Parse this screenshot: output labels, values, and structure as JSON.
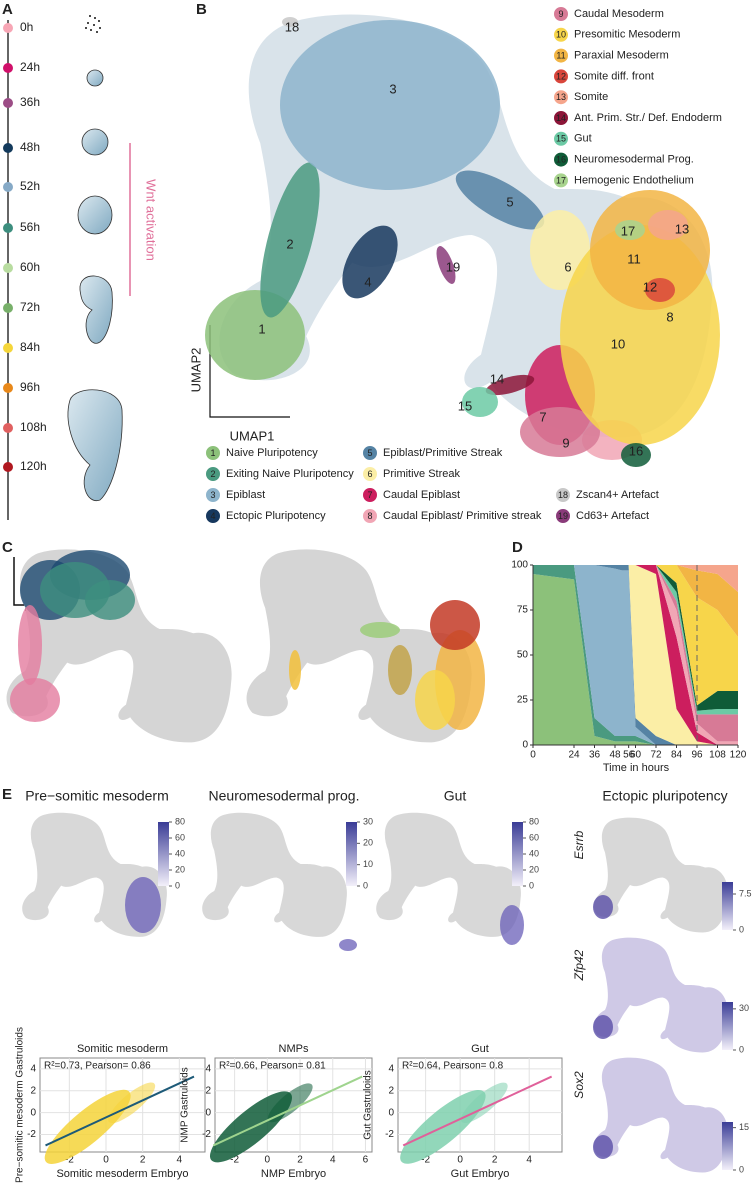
{
  "panelA": {
    "label": "A",
    "annotation": "Wnt activation",
    "timepoints": [
      {
        "label": "0h",
        "color": "#f7a6b5"
      },
      {
        "label": "24h",
        "color": "#d0106a"
      },
      {
        "label": "36h",
        "color": "#9c4d86"
      },
      {
        "label": "48h",
        "color": "#143a5c"
      },
      {
        "label": "52h",
        "color": "#86a9c6"
      },
      {
        "label": "56h",
        "color": "#3d8e7e"
      },
      {
        "label": "60h",
        "color": "#b8dca0"
      },
      {
        "label": "72h",
        "color": "#78b06a"
      },
      {
        "label": "84h",
        "color": "#f5d63a"
      },
      {
        "label": "96h",
        "color": "#e8881a"
      },
      {
        "label": "108h",
        "color": "#e06060"
      },
      {
        "label": "120h",
        "color": "#b01820"
      }
    ]
  },
  "panelB": {
    "label": "B",
    "xlabel": "UMAP1",
    "ylabel": "UMAP2",
    "clusters": [
      {
        "id": "1",
        "name": "Naive Pluripotency",
        "color": "#8cc17a"
      },
      {
        "id": "2",
        "name": "Exiting Naive Pluripotency",
        "color": "#4a9a80"
      },
      {
        "id": "3",
        "name": "Epiblast",
        "color": "#8db4cc"
      },
      {
        "id": "4",
        "name": "Ectopic Pluripotency",
        "color": "#17385e"
      },
      {
        "id": "5",
        "name": "Epiblast/Primitive Streak",
        "color": "#5583a4"
      },
      {
        "id": "6",
        "name": "Primitive Streak",
        "color": "#fbeea6"
      },
      {
        "id": "7",
        "name": "Caudal Epiblast",
        "color": "#cc1e5e"
      },
      {
        "id": "8",
        "name": "Caudal Epiblast/ Primitive streak",
        "color": "#f1a6b5"
      },
      {
        "id": "9",
        "name": "Caudal Mesoderm",
        "color": "#d77a96"
      },
      {
        "id": "10",
        "name": "Presomitic Mesoderm",
        "color": "#f7d54a"
      },
      {
        "id": "11",
        "name": "Paraxial Mesoderm",
        "color": "#f2b544"
      },
      {
        "id": "12",
        "name": "Somite diff. front",
        "color": "#d9463c"
      },
      {
        "id": "13",
        "name": "Somite",
        "color": "#f5a58c"
      },
      {
        "id": "14",
        "name": "Ant. Prim. Str./ Def. Endoderm",
        "color": "#8c1538"
      },
      {
        "id": "15",
        "name": "Gut",
        "color": "#6ccaa5"
      },
      {
        "id": "16",
        "name": "Neuromesodermal Prog.",
        "color": "#0f5c38"
      },
      {
        "id": "17",
        "name": "Hemogenic Endothelium",
        "color": "#a8d48e"
      },
      {
        "id": "18",
        "name": "Zscan4+ Artefact",
        "color": "#c8c8c8"
      },
      {
        "id": "19",
        "name": "Cd63+ Artefact",
        "color": "#8a3b7a"
      }
    ]
  },
  "panelC": {
    "label": "C"
  },
  "chart_data": {
    "type": "area",
    "label": "D",
    "xlabel": "Time in hours",
    "x": [
      0,
      24,
      36,
      48,
      52,
      56,
      60,
      72,
      84,
      96,
      108,
      120
    ],
    "xlim": [
      0,
      120
    ],
    "xticks": [
      0,
      24,
      36,
      48,
      56,
      60,
      72,
      84,
      96,
      108,
      120
    ],
    "ylim": [
      0,
      100
    ],
    "yticks": [
      0,
      25,
      50,
      75,
      100
    ],
    "reference_x": 96,
    "series": [
      {
        "color": "#8cc17a",
        "values": [
          95,
          92,
          5,
          2,
          2,
          2,
          2,
          0,
          0,
          0,
          0,
          0
        ]
      },
      {
        "color": "#4a9a80",
        "values": [
          5,
          8,
          10,
          3,
          3,
          3,
          3,
          0,
          0,
          0,
          0,
          0
        ]
      },
      {
        "color": "#8db4cc",
        "values": [
          0,
          0,
          85,
          93,
          92,
          92,
          5,
          0,
          0,
          0,
          0,
          0
        ]
      },
      {
        "color": "#5583a4",
        "values": [
          0,
          0,
          0,
          2,
          3,
          3,
          5,
          5,
          0,
          0,
          0,
          0
        ]
      },
      {
        "color": "#fbeea6",
        "values": [
          0,
          0,
          0,
          0,
          0,
          0,
          85,
          90,
          20,
          2,
          0,
          0
        ]
      },
      {
        "color": "#cc1e5e",
        "values": [
          0,
          0,
          0,
          0,
          0,
          0,
          0,
          5,
          40,
          5,
          0,
          0
        ]
      },
      {
        "color": "#f1a6b5",
        "values": [
          0,
          0,
          0,
          0,
          0,
          0,
          0,
          0,
          15,
          5,
          2,
          2
        ]
      },
      {
        "color": "#d77a96",
        "values": [
          0,
          0,
          0,
          0,
          0,
          0,
          0,
          0,
          5,
          5,
          15,
          15
        ]
      },
      {
        "color": "#6ccaa5",
        "values": [
          0,
          0,
          0,
          0,
          0,
          0,
          0,
          0,
          5,
          2,
          3,
          3
        ]
      },
      {
        "color": "#0f5c38",
        "values": [
          0,
          0,
          0,
          0,
          0,
          0,
          0,
          0,
          5,
          3,
          10,
          10
        ]
      },
      {
        "color": "#f7d54a",
        "values": [
          0,
          0,
          0,
          0,
          0,
          0,
          0,
          0,
          10,
          60,
          45,
          30
        ]
      },
      {
        "color": "#f2b544",
        "values": [
          0,
          0,
          0,
          0,
          0,
          0,
          0,
          0,
          0,
          15,
          20,
          25
        ]
      },
      {
        "color": "#f5a58c",
        "values": [
          0,
          0,
          0,
          0,
          0,
          0,
          0,
          0,
          0,
          3,
          5,
          15
        ]
      }
    ]
  },
  "panelE": {
    "label": "E",
    "maps": [
      {
        "title": "Pre−somitic mesoderm",
        "lim": [
          0,
          80
        ],
        "ticks": [
          0,
          20,
          40,
          60,
          80
        ]
      },
      {
        "title": "Neuromesodermal prog.",
        "lim": [
          0,
          30
        ],
        "ticks": [
          0,
          10,
          20,
          30
        ]
      },
      {
        "title": "Gut",
        "lim": [
          0,
          80
        ],
        "ticks": [
          0,
          20,
          40,
          60,
          80
        ]
      }
    ],
    "ectopic": {
      "title": "Ectopic pluripotency",
      "genes": [
        {
          "name": "Esrrb",
          "lim": [
            0,
            10
          ],
          "ticks": [
            0,
            7.5
          ]
        },
        {
          "name": "Zfp42",
          "lim": [
            0,
            35
          ],
          "ticks": [
            0,
            30
          ]
        },
        {
          "name": "Sox2",
          "lim": [
            0,
            17
          ],
          "ticks": [
            0,
            15
          ]
        }
      ]
    },
    "scatters": [
      {
        "title": "Somitic mesoderm",
        "stats": "R²=0.73, Pearson= 0.86",
        "xlabel": "Somitic mesoderm Embryo",
        "ylabel": "Pre−somitic mesoderm Gastruloids",
        "color": "#f5d33a",
        "line": "#1d5a78",
        "xlim": [
          -3.6,
          5.4
        ],
        "xticks": [
          -2,
          0,
          2,
          4
        ],
        "ylim": [
          -3.6,
          5
        ],
        "yticks": [
          -2,
          0,
          2,
          4
        ]
      },
      {
        "title": "NMPs",
        "stats": "R²=0.66, Pearson= 0.81",
        "xlabel": "NMP Embryo",
        "ylabel": "NMP Gastruloids",
        "color": "#0f5c38",
        "line": "#9fd48e",
        "xlim": [
          -3.2,
          6.4
        ],
        "xticks": [
          -2,
          0,
          2,
          4,
          6
        ],
        "ylim": [
          -3.6,
          5
        ],
        "yticks": [
          -2,
          0,
          2,
          4
        ]
      },
      {
        "title": "Gut",
        "stats": "R²=0.64, Pearson= 0.8",
        "xlabel": "Gut Embryo",
        "ylabel": "Gut Gastruloids",
        "color": "#7fd0ae",
        "line": "#e0609a",
        "xlim": [
          -3.6,
          5.9
        ],
        "xticks": [
          -2,
          0,
          2,
          4
        ],
        "ylim": [
          -3.6,
          5
        ],
        "yticks": [
          -2,
          0,
          2,
          4
        ]
      }
    ]
  }
}
